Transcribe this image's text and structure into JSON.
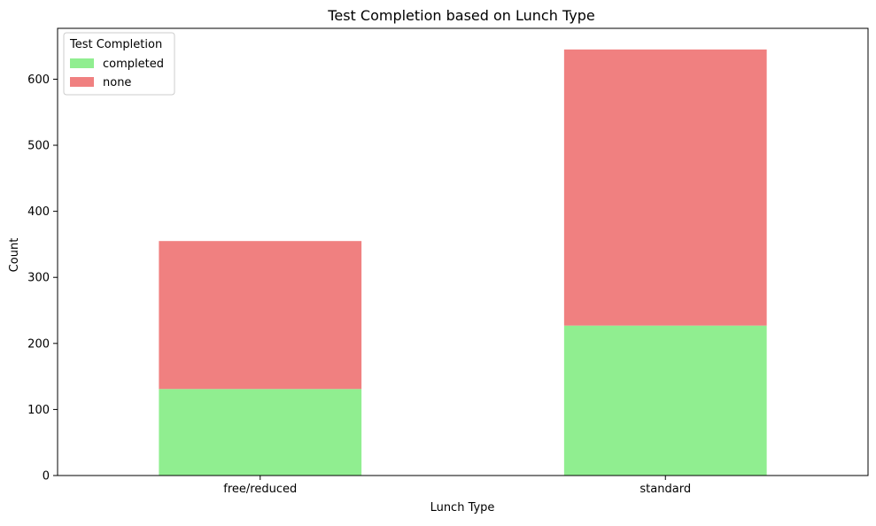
{
  "chart_data": {
    "type": "bar",
    "stacked": true,
    "title": "Test Completion based on Lunch Type",
    "xlabel": "Lunch Type",
    "ylabel": "Count",
    "categories": [
      "free/reduced",
      "standard"
    ],
    "series": [
      {
        "name": "completed",
        "values": [
          131,
          227
        ],
        "color": "#90ee90"
      },
      {
        "name": "none",
        "values": [
          224,
          418
        ],
        "color": "#f08080"
      }
    ],
    "ylim": [
      0,
      677
    ],
    "yticks": [
      0,
      100,
      200,
      300,
      400,
      500,
      600
    ],
    "grid": false,
    "legend": {
      "title": "Test Completion",
      "placement": "top-left"
    }
  }
}
